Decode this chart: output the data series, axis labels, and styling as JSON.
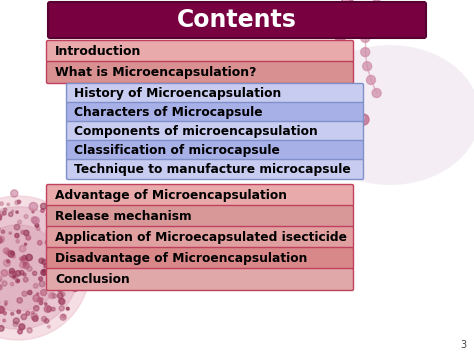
{
  "title": "Contents",
  "title_bg": "#780040",
  "title_color": "#FFFFFF",
  "bg_color": "#FFFFFF",
  "red_items_top": [
    "Introduction",
    "What is Microencapsulation?"
  ],
  "blue_items": [
    "History of Microencapsulation",
    "Characters of Microcapsule",
    "Components of microencapsulation",
    "Classification of microcapsule",
    "Technique to manufacture microcapsule"
  ],
  "red_items_bottom": [
    "Advantage of Microencapsulation",
    "Release mechanism",
    "Application of Microecapsulated isecticide",
    "Disadvantage of Microencapsulation",
    "Conclusion"
  ],
  "red_bar_colors_top": [
    "#E8AAAA",
    "#D89090"
  ],
  "red_bar_border": "#C04060",
  "blue_bar_color_light": "#C8CCF0",
  "blue_bar_color_dark": "#A8B0E8",
  "blue_bar_border": "#8090C8",
  "red_bottom_colors": [
    "#E8AAAA",
    "#D89898",
    "#E0A0A0",
    "#D88888",
    "#E0A8A8"
  ],
  "text_color": "#000000",
  "mol_color": "#C07090",
  "page_num": "3",
  "figw": 4.74,
  "figh": 3.55,
  "dpi": 100
}
